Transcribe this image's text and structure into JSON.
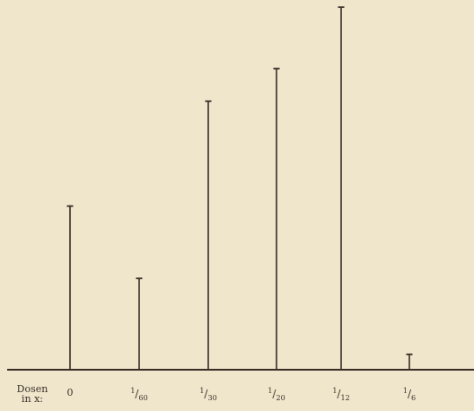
{
  "chart_data": {
    "type": "bar",
    "xlabel_line1": "Dosen",
    "xlabel_line2": "in x:",
    "ylabel": "",
    "title": "",
    "ylim": [
      0,
      100
    ],
    "categories": [
      {
        "text": "0"
      },
      {
        "num": "1",
        "den": "60"
      },
      {
        "num": "1",
        "den": "30"
      },
      {
        "num": "1",
        "den": "20"
      },
      {
        "num": "1",
        "den": "12"
      },
      {
        "num": "1",
        "den": "6"
      }
    ],
    "values": [
      45,
      25,
      74,
      83,
      100,
      4
    ],
    "colors": {
      "background": "#efe6cb",
      "ink": "#3a2e28"
    }
  }
}
